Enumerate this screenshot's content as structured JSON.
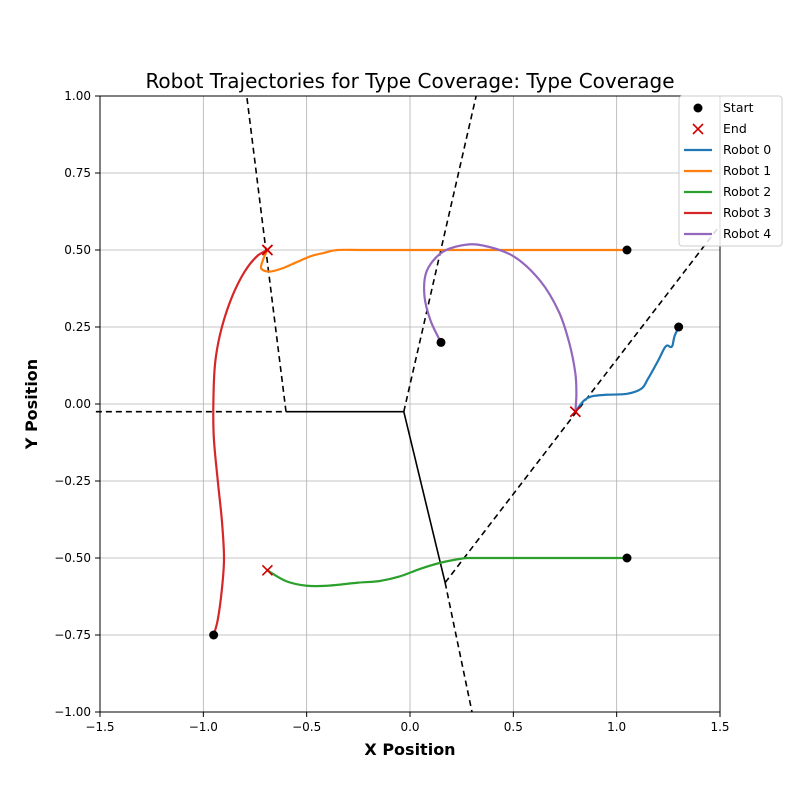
{
  "chart_data": {
    "type": "line",
    "title": "Robot Trajectories for Type Coverage: Type Coverage",
    "xlabel": "X Position",
    "ylabel": "Y Position",
    "xlim": [
      -1.5,
      1.5
    ],
    "ylim": [
      -1.0,
      1.0
    ],
    "xticks": [
      -1.5,
      -1.0,
      -0.5,
      0.0,
      0.5,
      1.0,
      1.5
    ],
    "yticks": [
      -1.0,
      -0.75,
      -0.5,
      -0.25,
      0.0,
      0.25,
      0.5,
      0.75,
      1.0
    ],
    "xtick_labels": [
      "−1.5",
      "−1.0",
      "−0.5",
      "0.0",
      "0.5",
      "1.0",
      "1.5"
    ],
    "ytick_labels": [
      "−1.00",
      "−0.75",
      "−0.50",
      "−0.25",
      "0.00",
      "0.25",
      "0.50",
      "0.75",
      "1.00"
    ],
    "grid": true,
    "legend_position": "top-right",
    "legend": {
      "start_label": "Start",
      "end_label": "End"
    },
    "series": [
      {
        "name": "Robot 0",
        "color": "#1f77b4",
        "start": [
          1.3,
          0.25
        ],
        "end": [
          0.8,
          -0.025
        ],
        "points": [
          [
            1.3,
            0.25
          ],
          [
            1.28,
            0.22
          ],
          [
            1.27,
            0.19
          ],
          [
            1.26,
            0.185
          ],
          [
            1.245,
            0.19
          ],
          [
            1.23,
            0.18
          ],
          [
            1.2,
            0.14
          ],
          [
            1.15,
            0.08
          ],
          [
            1.12,
            0.05
          ],
          [
            1.05,
            0.033
          ],
          [
            0.95,
            0.03
          ],
          [
            0.88,
            0.025
          ],
          [
            0.84,
            0.01
          ],
          [
            0.8,
            -0.025
          ]
        ]
      },
      {
        "name": "Robot 1",
        "color": "#ff7f0e",
        "start": [
          1.05,
          0.5
        ],
        "end": [
          -0.69,
          0.5
        ],
        "points": [
          [
            1.05,
            0.5
          ],
          [
            0.8,
            0.5
          ],
          [
            0.5,
            0.5
          ],
          [
            0.2,
            0.5
          ],
          [
            -0.2,
            0.5
          ],
          [
            -0.35,
            0.5
          ],
          [
            -0.42,
            0.49
          ],
          [
            -0.48,
            0.48
          ],
          [
            -0.55,
            0.46
          ],
          [
            -0.62,
            0.44
          ],
          [
            -0.68,
            0.43
          ],
          [
            -0.72,
            0.44
          ],
          [
            -0.71,
            0.47
          ],
          [
            -0.69,
            0.5
          ]
        ]
      },
      {
        "name": "Robot 2",
        "color": "#2ca02c",
        "start": [
          1.05,
          -0.5
        ],
        "end": [
          -0.69,
          -0.54
        ],
        "points": [
          [
            1.05,
            -0.5
          ],
          [
            0.8,
            -0.5
          ],
          [
            0.5,
            -0.5
          ],
          [
            0.3,
            -0.5
          ],
          [
            0.25,
            -0.502
          ],
          [
            0.15,
            -0.515
          ],
          [
            0.05,
            -0.535
          ],
          [
            -0.05,
            -0.56
          ],
          [
            -0.15,
            -0.575
          ],
          [
            -0.25,
            -0.58
          ],
          [
            -0.4,
            -0.59
          ],
          [
            -0.5,
            -0.59
          ],
          [
            -0.6,
            -0.575
          ],
          [
            -0.69,
            -0.54
          ]
        ]
      },
      {
        "name": "Robot 3",
        "color": "#d62728",
        "start": [
          -0.95,
          -0.75
        ],
        "end": [
          -0.69,
          0.5
        ],
        "points": [
          [
            -0.95,
            -0.75
          ],
          [
            -0.93,
            -0.7
          ],
          [
            -0.91,
            -0.6
          ],
          [
            -0.9,
            -0.5
          ],
          [
            -0.91,
            -0.38
          ],
          [
            -0.93,
            -0.25
          ],
          [
            -0.95,
            -0.1
          ],
          [
            -0.95,
            0.05
          ],
          [
            -0.94,
            0.15
          ],
          [
            -0.91,
            0.25
          ],
          [
            -0.86,
            0.35
          ],
          [
            -0.8,
            0.43
          ],
          [
            -0.74,
            0.48
          ],
          [
            -0.69,
            0.5
          ]
        ]
      },
      {
        "name": "Robot 4",
        "color": "#9467bd",
        "start": [
          0.15,
          0.2
        ],
        "end": [
          0.8,
          -0.025
        ],
        "points": [
          [
            0.15,
            0.2
          ],
          [
            0.1,
            0.27
          ],
          [
            0.07,
            0.35
          ],
          [
            0.08,
            0.43
          ],
          [
            0.15,
            0.49
          ],
          [
            0.25,
            0.515
          ],
          [
            0.35,
            0.515
          ],
          [
            0.5,
            0.48
          ],
          [
            0.63,
            0.4
          ],
          [
            0.72,
            0.3
          ],
          [
            0.77,
            0.2
          ],
          [
            0.8,
            0.1
          ],
          [
            0.805,
            0.03
          ],
          [
            0.8,
            -0.025
          ]
        ]
      }
    ],
    "boundaries": [
      {
        "style": "solid",
        "points": [
          [
            -0.6,
            -0.025
          ],
          [
            -0.03,
            -0.025
          ],
          [
            0.17,
            -0.58
          ]
        ]
      },
      {
        "style": "dashed",
        "points": [
          [
            -1.52,
            -0.025
          ],
          [
            -0.6,
            -0.025
          ]
        ]
      },
      {
        "style": "dashed",
        "points": [
          [
            -0.6,
            -0.025
          ],
          [
            -0.79,
            1.0
          ]
        ]
      },
      {
        "style": "dashed",
        "points": [
          [
            -0.03,
            -0.025
          ],
          [
            0.32,
            1.0
          ]
        ]
      },
      {
        "style": "dashed",
        "points": [
          [
            0.17,
            -0.58
          ],
          [
            0.3,
            -1.0
          ]
        ]
      },
      {
        "style": "dashed",
        "points": [
          [
            0.17,
            -0.58
          ],
          [
            1.5,
            0.58
          ]
        ]
      }
    ]
  }
}
